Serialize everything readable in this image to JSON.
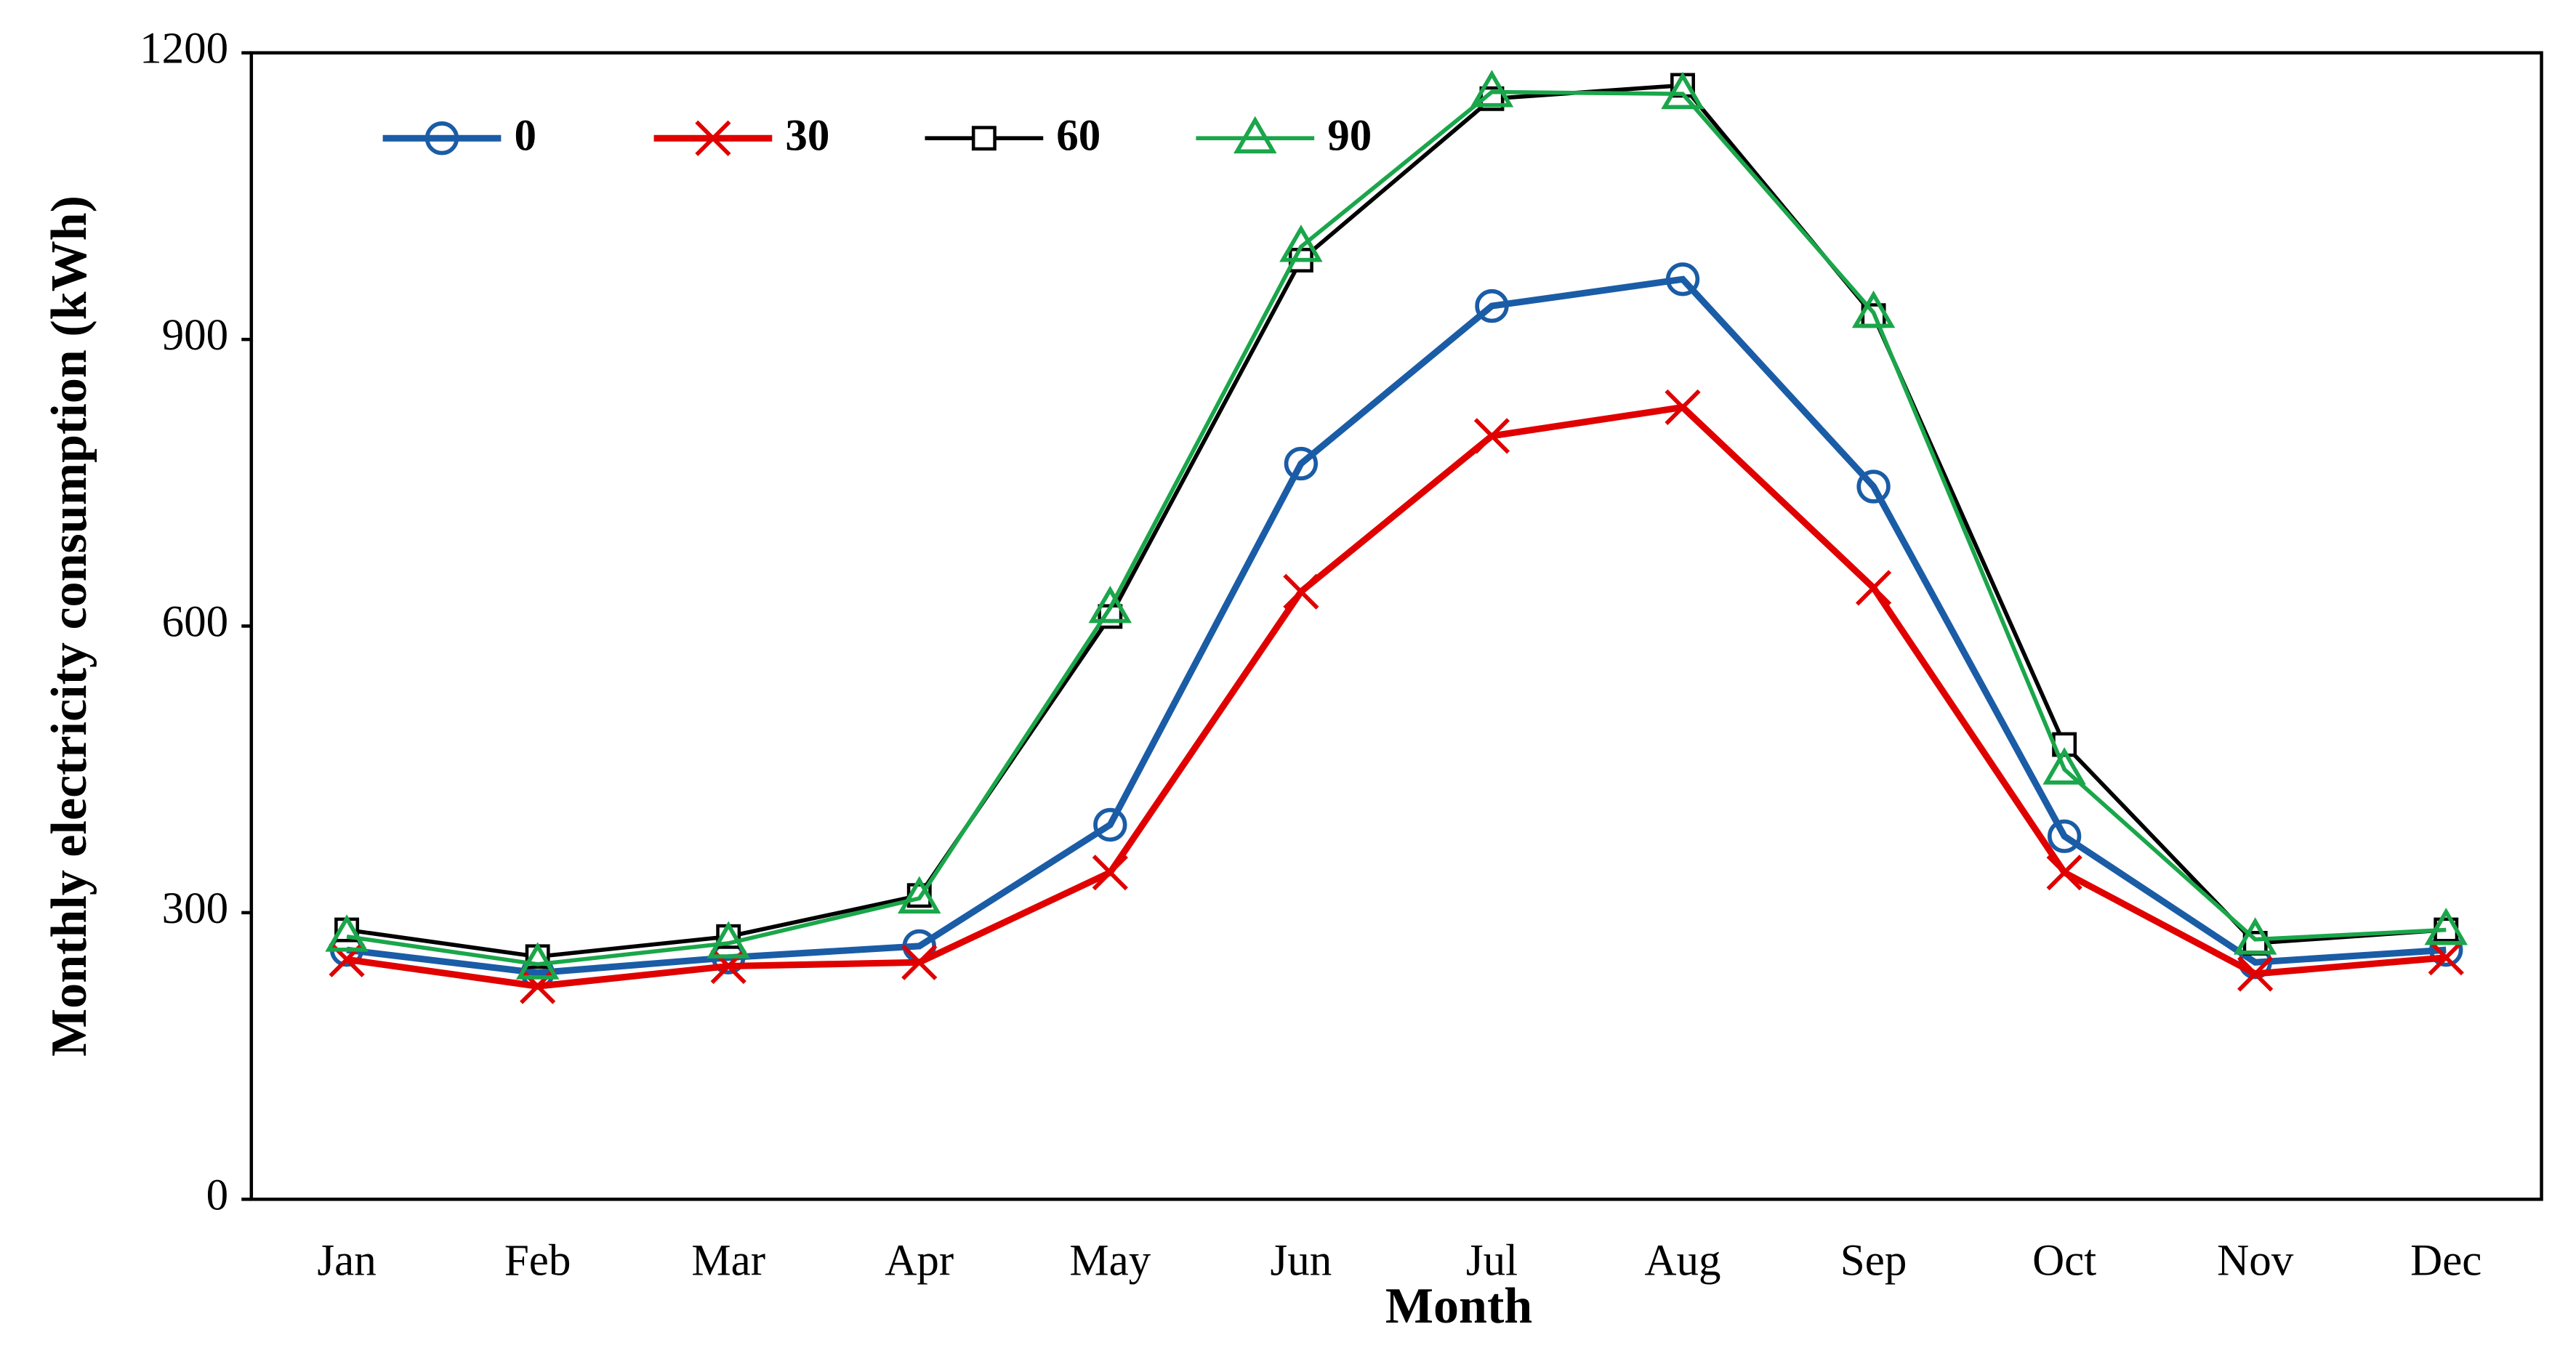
{
  "chart_data": {
    "type": "line",
    "x_label": "Month",
    "y_label": "Monthly electricity consumption (kWh)",
    "categories": [
      "Jan",
      "Feb",
      "Mar",
      "Apr",
      "May",
      "Jun",
      "Jul",
      "Aug",
      "Sep",
      "Oct",
      "Nov",
      "Dec"
    ],
    "ylim": [
      0,
      1200
    ],
    "yticks": [
      0,
      300,
      600,
      900,
      1200
    ],
    "grid": false,
    "legend_position": "top-left",
    "series": [
      {
        "name": "0",
        "color": "#1a5ca6",
        "marker": "circle",
        "values": [
          261,
          237,
          253,
          265,
          392,
          770,
          935,
          963,
          746,
          380,
          248,
          261
        ]
      },
      {
        "name": "30",
        "color": "#e00000",
        "marker": "cross",
        "values": [
          251,
          223,
          244,
          248,
          342,
          636,
          799,
          829,
          640,
          342,
          236,
          253
        ]
      },
      {
        "name": "60",
        "color": "#000000",
        "marker": "square",
        "values": [
          282,
          254,
          275,
          318,
          610,
          983,
          1152,
          1166,
          925,
          476,
          268,
          282
        ]
      },
      {
        "name": "90",
        "color": "#1aa64a",
        "marker": "triangle",
        "values": [
          275,
          246,
          268,
          315,
          619,
          997,
          1159,
          1157,
          928,
          450,
          272,
          282
        ]
      }
    ]
  }
}
